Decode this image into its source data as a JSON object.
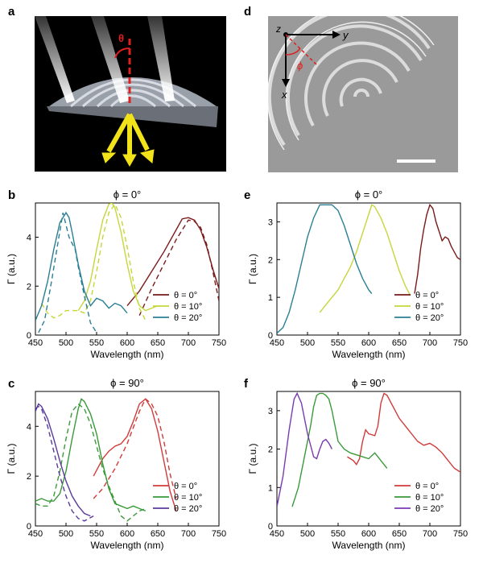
{
  "panels": {
    "a": {
      "letter": "a",
      "theta_symbol": "θ"
    },
    "d": {
      "letter": "d",
      "z_label": "z",
      "y_label": "y",
      "x_label": "x",
      "phi_symbol": "ϕ"
    },
    "b": {
      "letter": "b"
    },
    "c": {
      "letter": "c"
    },
    "e": {
      "letter": "e"
    },
    "f": {
      "letter": "f"
    }
  },
  "chart_data": [
    {
      "id": "b",
      "type": "line",
      "title": "ϕ = 0°",
      "xlabel": "Wavelength (nm)",
      "ylabel": "Γ (a.u.)",
      "xlim": [
        450,
        750
      ],
      "ylim": [
        0,
        5.4
      ],
      "xticks": [
        450,
        500,
        550,
        600,
        650,
        700,
        750
      ],
      "yticks": [
        0,
        2,
        4
      ],
      "legend_position": "bottom-right",
      "series": [
        {
          "name": "θ = 0°",
          "color": "#7a1a1a",
          "dash": false,
          "x": [
            600,
            620,
            640,
            660,
            680,
            690,
            700,
            710,
            720,
            730,
            740,
            750
          ],
          "y": [
            1.2,
            1.8,
            2.6,
            3.4,
            4.3,
            4.75,
            4.8,
            4.7,
            4.3,
            3.6,
            2.7,
            1.9
          ]
        },
        {
          "name": "θ = 0°",
          "color": "#7a1a1a",
          "dash": true,
          "x": [
            620,
            640,
            660,
            680,
            700,
            710,
            720,
            730,
            740,
            750
          ],
          "y": [
            0.8,
            1.9,
            2.9,
            3.9,
            4.7,
            4.65,
            4.4,
            3.7,
            2.6,
            1.4
          ]
        },
        {
          "name": "θ = 10°",
          "color": "#c6d63a",
          "dash": false,
          "x": [
            520,
            530,
            540,
            550,
            560,
            570,
            575,
            580,
            590,
            600,
            610,
            620,
            630,
            640,
            650
          ],
          "y": [
            1.0,
            1.4,
            2.2,
            3.5,
            4.7,
            5.35,
            5.4,
            5.2,
            4.2,
            2.9,
            1.8,
            1.2,
            1.0,
            1.1,
            1.2
          ]
        },
        {
          "name": "θ = 10°",
          "color": "#c6d63a",
          "dash": true,
          "x": [
            460,
            470,
            480,
            490,
            500,
            520,
            530,
            540,
            550,
            560,
            570,
            580,
            590,
            600,
            610,
            620,
            630
          ],
          "y": [
            1.3,
            0.9,
            0.7,
            0.8,
            1.0,
            1.0,
            0.9,
            1.4,
            2.6,
            4.0,
            5.0,
            5.35,
            4.8,
            3.6,
            2.2,
            1.1,
            0.6
          ]
        },
        {
          "name": "θ = 20°",
          "color": "#2a7f95",
          "dash": false,
          "x": [
            450,
            460,
            470,
            480,
            490,
            500,
            505,
            510,
            520,
            530,
            540,
            550,
            560,
            570,
            580,
            590,
            600
          ],
          "y": [
            0.6,
            1.2,
            2.2,
            3.5,
            4.6,
            5.0,
            4.8,
            4.2,
            2.9,
            1.8,
            1.2,
            1.5,
            1.4,
            1.1,
            1.3,
            1.2,
            0.9
          ]
        },
        {
          "name": "θ = 20°",
          "color": "#2a7f95",
          "dash": true,
          "x": [
            455,
            465,
            475,
            485,
            495,
            505,
            515,
            520,
            530,
            540,
            550
          ],
          "y": [
            0.1,
            0.6,
            2.0,
            3.5,
            5.0,
            4.0,
            3.5,
            2.8,
            1.6,
            0.5,
            0.1
          ]
        }
      ],
      "legend": [
        "θ = 0°",
        "θ = 10°",
        "θ = 20°"
      ],
      "legend_colors": [
        "#7a1a1a",
        "#c6d63a",
        "#2a7f95"
      ]
    },
    {
      "id": "c",
      "type": "line",
      "title": "ϕ = 90°",
      "xlabel": "Wavelength (nm)",
      "ylabel": "Γ (a.u.)",
      "xlim": [
        450,
        750
      ],
      "ylim": [
        0,
        5.4
      ],
      "xticks": [
        450,
        500,
        550,
        600,
        650,
        700,
        750
      ],
      "yticks": [
        0,
        2,
        4
      ],
      "legend_position": "bottom-right",
      "series": [
        {
          "name": "θ = 0°",
          "color": "#d23a3a",
          "dash": false,
          "x": [
            545,
            560,
            570,
            580,
            590,
            600,
            610,
            620,
            630,
            640,
            650,
            660,
            670,
            680
          ],
          "y": [
            2.0,
            2.7,
            3.0,
            3.2,
            3.3,
            3.6,
            4.2,
            4.9,
            5.1,
            4.7,
            3.8,
            2.6,
            1.4,
            0.6
          ]
        },
        {
          "name": "θ = 0°",
          "color": "#d23a3a",
          "dash": true,
          "x": [
            545,
            560,
            580,
            600,
            620,
            630,
            640,
            650,
            660,
            670,
            680
          ],
          "y": [
            1.1,
            1.5,
            2.3,
            3.3,
            4.6,
            5.1,
            4.9,
            4.4,
            3.4,
            2.1,
            1.1
          ]
        },
        {
          "name": "θ = 10°",
          "color": "#3a9a3a",
          "dash": false,
          "x": [
            450,
            460,
            470,
            480,
            490,
            500,
            510,
            520,
            525,
            530,
            540,
            550,
            560,
            570,
            580,
            590,
            600,
            610,
            620,
            630
          ],
          "y": [
            1.0,
            1.1,
            1.0,
            1.0,
            1.3,
            2.2,
            3.5,
            4.7,
            5.1,
            5.0,
            4.5,
            3.7,
            2.5,
            1.5,
            0.9,
            0.8,
            0.7,
            0.8,
            0.7,
            0.6
          ]
        },
        {
          "name": "θ = 10°",
          "color": "#3a9a3a",
          "dash": true,
          "x": [
            450,
            460,
            470,
            480,
            490,
            500,
            510,
            520,
            530,
            540,
            550,
            560,
            570,
            580,
            590,
            600,
            610,
            620,
            630
          ],
          "y": [
            0.9,
            0.8,
            0.8,
            1.2,
            2.2,
            3.5,
            4.6,
            4.9,
            4.7,
            4.1,
            3.2,
            2.3,
            1.6,
            1.0,
            0.4,
            0.2,
            0.4,
            0.6,
            0.7
          ]
        },
        {
          "name": "θ = 20°",
          "color": "#5a3a9a",
          "dash": false,
          "x": [
            450,
            455,
            460,
            470,
            480,
            490,
            500,
            510,
            520,
            530,
            540
          ],
          "y": [
            4.6,
            4.9,
            4.8,
            4.3,
            3.5,
            2.6,
            1.8,
            1.2,
            0.8,
            0.5,
            0.4
          ]
        },
        {
          "name": "θ = 20°",
          "color": "#5a3a9a",
          "dash": true,
          "x": [
            450,
            455,
            460,
            470,
            480,
            490,
            500,
            510,
            520,
            530,
            545
          ],
          "y": [
            4.7,
            4.8,
            4.7,
            4.0,
            3.0,
            2.0,
            1.2,
            0.6,
            0.3,
            0.2,
            0.4
          ]
        }
      ],
      "legend": [
        "θ = 0°",
        "θ = 10°",
        "θ = 20°"
      ],
      "legend_colors": [
        "#d23a3a",
        "#3a9a3a",
        "#5a3a9a"
      ]
    },
    {
      "id": "e",
      "type": "line",
      "title": "ϕ = 0°",
      "xlabel": "Wavelength (nm)",
      "ylabel": "Γ (a.u.)",
      "xlim": [
        450,
        750
      ],
      "ylim": [
        0,
        3.5
      ],
      "xticks": [
        450,
        500,
        550,
        600,
        650,
        700,
        750
      ],
      "yticks": [
        0,
        1,
        2,
        3
      ],
      "legend_position": "bottom-right",
      "series": [
        {
          "name": "θ = 0°",
          "color": "#7a1a1a",
          "dash": false,
          "x": [
            675,
            680,
            685,
            690,
            695,
            700,
            705,
            710,
            715,
            720,
            725,
            730,
            735,
            740,
            745,
            750
          ],
          "y": [
            1.1,
            1.6,
            2.3,
            2.8,
            3.2,
            3.45,
            3.35,
            3.0,
            2.75,
            2.5,
            2.6,
            2.55,
            2.35,
            2.2,
            2.05,
            2.0
          ]
        },
        {
          "name": "θ = 10°",
          "color": "#c6d63a",
          "dash": false,
          "x": [
            520,
            530,
            540,
            550,
            560,
            570,
            580,
            590,
            600,
            605,
            610,
            620,
            630,
            640,
            650,
            660,
            668
          ],
          "y": [
            0.6,
            0.8,
            1.0,
            1.2,
            1.5,
            1.8,
            2.2,
            2.7,
            3.2,
            3.45,
            3.4,
            3.1,
            2.7,
            2.2,
            1.7,
            1.3,
            1.05
          ]
        },
        {
          "name": "θ = 20°",
          "color": "#2a7f95",
          "dash": false,
          "x": [
            450,
            460,
            470,
            480,
            490,
            500,
            510,
            520,
            530,
            540,
            550,
            560,
            570,
            580,
            590,
            600,
            605
          ],
          "y": [
            0.05,
            0.2,
            0.6,
            1.2,
            1.9,
            2.6,
            3.1,
            3.45,
            3.45,
            3.45,
            3.3,
            2.9,
            2.4,
            1.9,
            1.5,
            1.2,
            1.1
          ]
        }
      ],
      "legend": [
        "θ = 0°",
        "θ = 10°",
        "θ = 20°"
      ],
      "legend_colors": [
        "#7a1a1a",
        "#c6d63a",
        "#2a7f95"
      ]
    },
    {
      "id": "f",
      "type": "line",
      "title": "ϕ = 90°",
      "xlabel": "Wavelength (nm)",
      "ylabel": "Γ (a.u.)",
      "xlim": [
        450,
        750
      ],
      "ylim": [
        0,
        3.5
      ],
      "xticks": [
        450,
        500,
        550,
        600,
        650,
        700,
        750
      ],
      "yticks": [
        0,
        1,
        2,
        3
      ],
      "legend_position": "bottom-right",
      "series": [
        {
          "name": "θ = 0°",
          "color": "#d23a3a",
          "dash": false,
          "x": [
            565,
            575,
            580,
            585,
            590,
            595,
            600,
            610,
            615,
            620,
            625,
            630,
            640,
            650,
            660,
            670,
            680,
            690,
            700,
            710,
            720,
            730,
            740,
            750
          ],
          "y": [
            1.8,
            1.7,
            1.6,
            1.75,
            2.2,
            2.5,
            2.4,
            2.35,
            2.6,
            3.2,
            3.45,
            3.4,
            3.1,
            2.8,
            2.6,
            2.4,
            2.2,
            2.1,
            2.15,
            2.05,
            1.9,
            1.7,
            1.5,
            1.4
          ]
        },
        {
          "name": "θ = 10°",
          "color": "#3a9a3a",
          "dash": false,
          "x": [
            475,
            485,
            495,
            505,
            510,
            515,
            520,
            525,
            530,
            535,
            540,
            545,
            550,
            560,
            570,
            580,
            590,
            600,
            610,
            620,
            630
          ],
          "y": [
            0.5,
            1.0,
            1.8,
            2.6,
            3.1,
            3.4,
            3.45,
            3.45,
            3.4,
            3.3,
            3.0,
            2.6,
            2.2,
            2.0,
            1.9,
            1.85,
            1.8,
            1.75,
            1.9,
            1.7,
            1.5
          ]
        },
        {
          "name": "θ = 20°",
          "color": "#7a3ab0",
          "dash": false,
          "x": [
            450,
            460,
            470,
            478,
            483,
            490,
            495,
            500,
            510,
            515,
            520,
            525,
            530,
            535,
            540
          ],
          "y": [
            0.5,
            1.3,
            2.5,
            3.3,
            3.45,
            3.2,
            2.8,
            2.4,
            1.8,
            1.75,
            2.0,
            2.2,
            2.25,
            2.15,
            2.0
          ]
        }
      ],
      "legend": [
        "θ = 0°",
        "θ = 10°",
        "θ = 20°"
      ],
      "legend_colors": [
        "#d23a3a",
        "#3a9a3a",
        "#7a3ab0"
      ]
    }
  ]
}
